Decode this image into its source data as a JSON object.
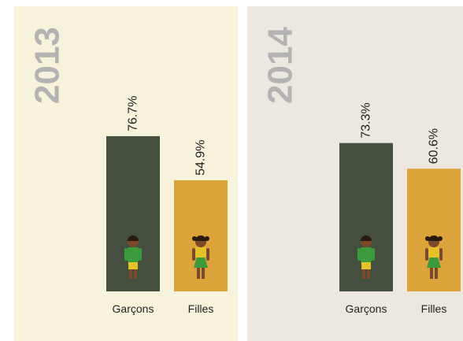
{
  "chart_data": [
    {
      "type": "bar",
      "title": "2013",
      "categories": [
        "Garçons",
        "Filles"
      ],
      "values": [
        76.7,
        54.9
      ],
      "value_labels": [
        "76.7%",
        "54.9%"
      ],
      "colors": [
        "#454f3f",
        "#dba33a"
      ],
      "background": "#f7f2dc"
    },
    {
      "type": "bar",
      "title": "2014",
      "categories": [
        "Garçons",
        "Filles"
      ],
      "values": [
        73.3,
        60.6
      ],
      "value_labels": [
        "73.3%",
        "60.6%"
      ],
      "colors": [
        "#454f3f",
        "#dba33a"
      ],
      "background": "#ece8e0"
    }
  ]
}
